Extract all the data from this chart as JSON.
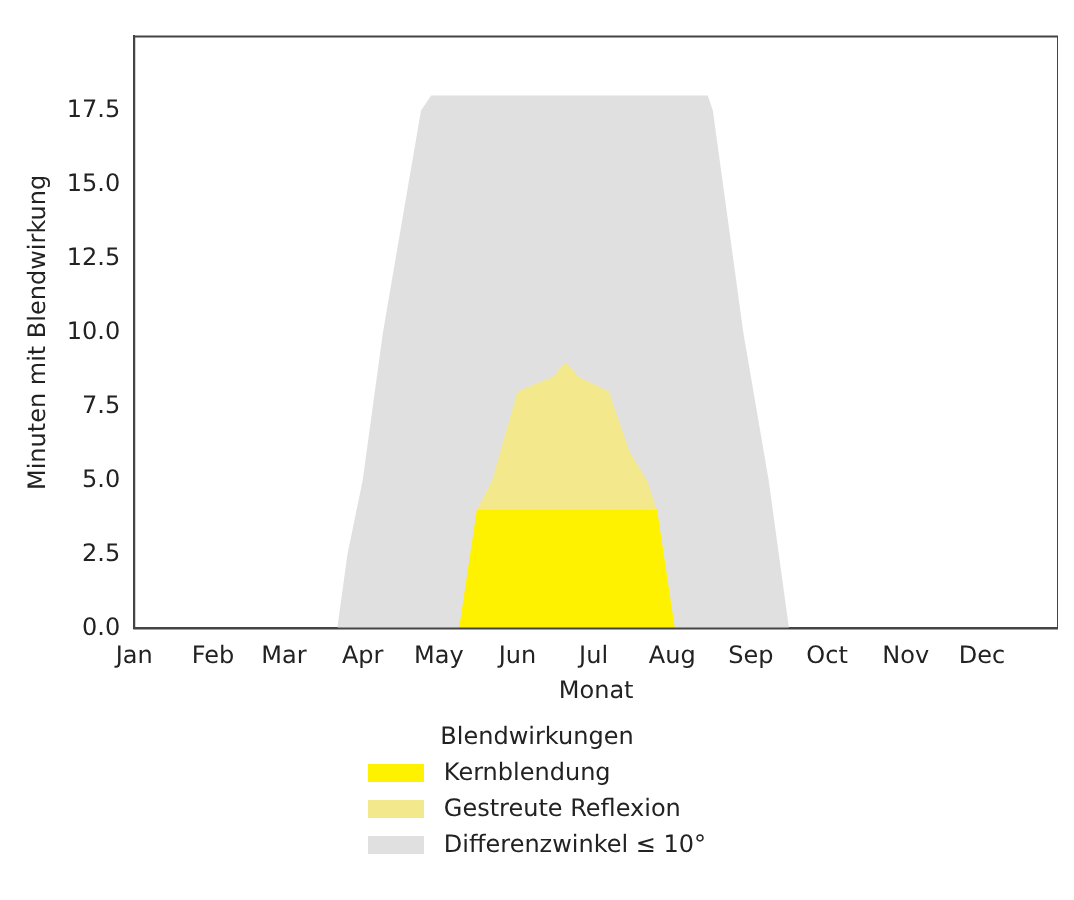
{
  "chart_data": {
    "type": "area",
    "xlabel": "Monat",
    "ylabel": "Minuten mit Blendwirkung",
    "legend_title": "Blendwirkungen",
    "legend": "bottom",
    "marker": "none",
    "grid": false,
    "xlim": [
      "--01-01",
      "--12-31"
    ],
    "xticks": [
      {
        "value": "--01-01",
        "label": "Jan"
      },
      {
        "value": "--02-01",
        "label": "Feb"
      },
      {
        "value": "--03-01",
        "label": "Mar"
      },
      {
        "value": "--04-01",
        "label": "Apr"
      },
      {
        "value": "--05-01",
        "label": "May"
      },
      {
        "value": "--06-01",
        "label": "Jun"
      },
      {
        "value": "--07-01",
        "label": "Jul"
      },
      {
        "value": "--08-01",
        "label": "Aug"
      },
      {
        "value": "--09-01",
        "label": "Sep"
      },
      {
        "value": "--10-01",
        "label": "Oct"
      },
      {
        "value": "--11-01",
        "label": "Nov"
      },
      {
        "value": "--12-01",
        "label": "Dec"
      }
    ],
    "ylim": [
      0,
      20
    ],
    "yticks": [
      {
        "value": 0,
        "label": "0.0"
      },
      {
        "value": 2.5,
        "label": "2.5"
      },
      {
        "value": 5,
        "label": "5.0"
      },
      {
        "value": 7.5,
        "label": "7.5"
      },
      {
        "value": 10,
        "label": "10.0"
      },
      {
        "value": 12.5,
        "label": "12.5"
      },
      {
        "value": 15,
        "label": "15.0"
      },
      {
        "value": 17.5,
        "label": "17.5"
      }
    ],
    "series": [
      {
        "name": "Kernblendung",
        "color": "#fff200",
        "x": [
          "--05-09",
          "--05-16",
          "--07-26",
          "--08-02"
        ],
        "values": [
          0,
          4,
          4,
          0
        ]
      },
      {
        "name": "Gestreute Reflexion",
        "color": "#f3e98c",
        "x": [
          "--05-09",
          "--05-16",
          "--05-22",
          "--06-01",
          "--06-15",
          "--06-20",
          "--06-25",
          "--07-07",
          "--07-15",
          "--07-22",
          "--07-26",
          "--08-02"
        ],
        "values": [
          0,
          4,
          5,
          8,
          8.5,
          9,
          8.5,
          8,
          6,
          5,
          4,
          0
        ]
      },
      {
        "name": "Differenzwinkel ≤ 10°",
        "color": "#e0e0e0",
        "x": [
          "--03-22",
          "--03-26",
          "--04-01",
          "--04-09",
          "--04-19",
          "--04-24",
          "--04-28",
          "--08-15",
          "--08-17",
          "--08-29",
          "--09-08",
          "--09-16"
        ],
        "values": [
          0,
          2.5,
          5,
          10,
          15,
          17.5,
          18,
          18,
          17.5,
          10,
          5,
          0
        ]
      }
    ]
  }
}
